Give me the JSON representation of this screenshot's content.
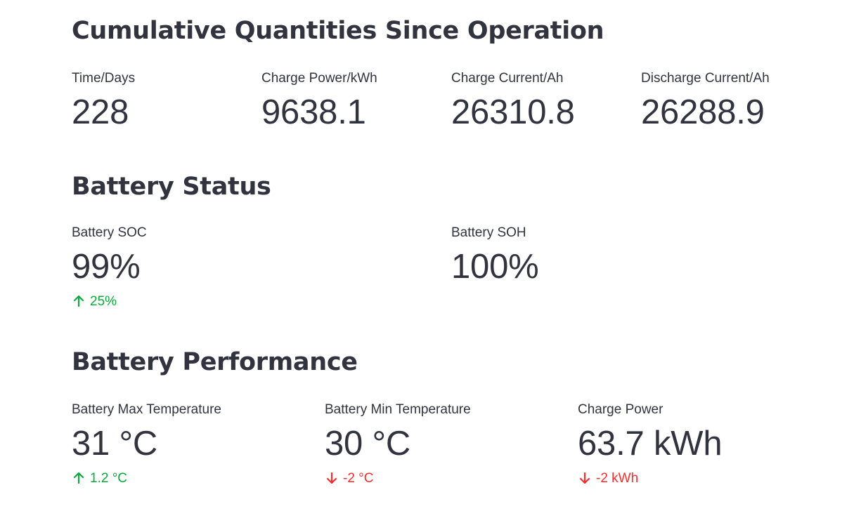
{
  "sections": {
    "cumulative": {
      "title": "Cumulative Quantities Since Operation",
      "metrics": [
        {
          "label": "Time/Days",
          "value": "228"
        },
        {
          "label": "Charge Power/kWh",
          "value": "9638.1"
        },
        {
          "label": "Charge Current/Ah",
          "value": "26310.8"
        },
        {
          "label": "Discharge Current/Ah",
          "value": "26288.9"
        }
      ]
    },
    "status": {
      "title": "Battery Status",
      "metrics": [
        {
          "label": "Battery SOC",
          "value": "99%",
          "delta": "25%",
          "delta_direction": "up"
        },
        {
          "label": "Battery SOH",
          "value": "100%"
        }
      ]
    },
    "performance": {
      "title": "Battery Performance",
      "metrics": [
        {
          "label": "Battery Max Temperature",
          "value": "31 °C",
          "delta": "1.2 °C",
          "delta_direction": "up"
        },
        {
          "label": "Battery Min Temperature",
          "value": "30 °C",
          "delta": "-2 °C",
          "delta_direction": "down"
        },
        {
          "label": "Charge Power",
          "value": "63.7 kWh",
          "delta": "-2 kWh",
          "delta_direction": "down"
        }
      ]
    }
  },
  "colors": {
    "text": "#31333f",
    "delta_up": "#09ab3b",
    "delta_down": "#ff2b2b",
    "background": "#ffffff"
  },
  "icons": {
    "delta_up": "arrow-up-icon",
    "delta_down": "arrow-down-icon"
  }
}
